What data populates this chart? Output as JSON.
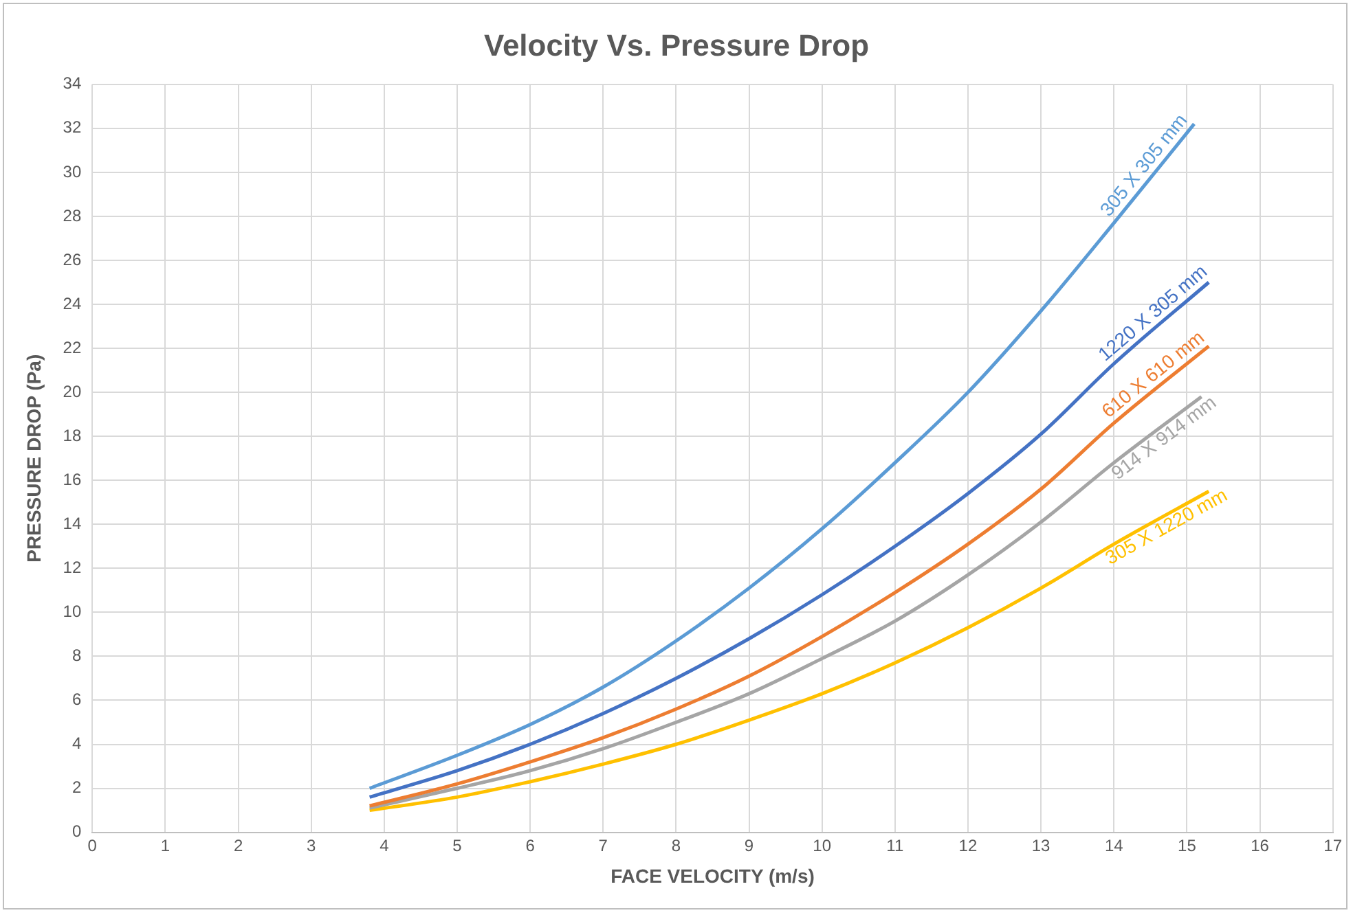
{
  "chart_data": {
    "type": "line",
    "title": "Velocity Vs. Pressure Drop",
    "xlabel": "FACE VELOCITY (m/s)",
    "ylabel": "PRESSURE DROP (Pa)",
    "xlim": [
      0,
      17
    ],
    "xticks": [
      0,
      1,
      2,
      3,
      4,
      5,
      6,
      7,
      8,
      9,
      10,
      11,
      12,
      13,
      14,
      15,
      16,
      17
    ],
    "ylim": [
      0,
      34
    ],
    "yticks": [
      0,
      2,
      4,
      6,
      8,
      10,
      12,
      14,
      16,
      18,
      20,
      22,
      24,
      26,
      28,
      30,
      32,
      34
    ],
    "grid": true,
    "legend": false,
    "marker": "none",
    "line_style": "solid",
    "series": [
      {
        "name": "305 X 305 mm",
        "color": "#5b9bd5",
        "x": [
          3.8,
          5,
          6,
          7,
          8,
          9,
          10,
          11,
          12,
          13,
          14,
          15.1
        ],
        "values": [
          2.0,
          3.5,
          4.9,
          6.6,
          8.7,
          11.1,
          13.8,
          16.8,
          20.0,
          23.7,
          27.7,
          32.2
        ]
      },
      {
        "name": "1220 X 305 mm",
        "color": "#4472c4",
        "x": [
          3.8,
          5,
          6,
          7,
          8,
          9,
          10,
          11,
          12,
          13,
          14,
          15.3
        ],
        "values": [
          1.6,
          2.8,
          4.0,
          5.4,
          7.0,
          8.8,
          10.8,
          13.0,
          15.4,
          18.1,
          21.3,
          25.0
        ]
      },
      {
        "name": "610 X 610 mm",
        "color": "#ed7d31",
        "x": [
          3.8,
          5,
          6,
          7,
          8,
          9,
          10,
          11,
          12,
          13,
          14,
          15.3
        ],
        "values": [
          1.2,
          2.2,
          3.2,
          4.3,
          5.6,
          7.1,
          8.9,
          10.9,
          13.1,
          15.6,
          18.6,
          22.1
        ]
      },
      {
        "name": "914 X 914 mm",
        "color": "#a5a5a5",
        "x": [
          3.8,
          5,
          6,
          7,
          8,
          9,
          10,
          11,
          12,
          13,
          14,
          15.2
        ],
        "values": [
          1.1,
          2.0,
          2.8,
          3.8,
          5.0,
          6.3,
          7.9,
          9.6,
          11.7,
          14.1,
          16.8,
          19.8
        ]
      },
      {
        "name": "305 X 1220 mm",
        "color": "#ffc000",
        "x": [
          3.8,
          5,
          6,
          7,
          8,
          9,
          10,
          11,
          12,
          13,
          14,
          15.3
        ],
        "values": [
          1.0,
          1.6,
          2.3,
          3.1,
          4.0,
          5.1,
          6.3,
          7.7,
          9.3,
          11.1,
          13.1,
          15.5
        ]
      }
    ]
  }
}
